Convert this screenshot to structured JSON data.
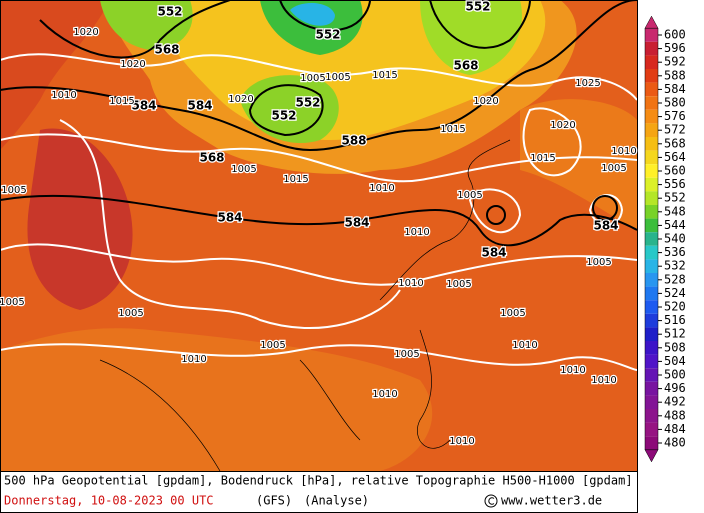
{
  "map": {
    "labels": [
      552,
      552,
      552,
      568,
      568,
      584,
      584,
      552,
      552,
      588,
      568,
      584,
      584,
      584,
      584,
      1020,
      1020,
      1010,
      1015,
      1020,
      1005,
      1005,
      1015,
      1020,
      1025,
      1020,
      1015,
      1010,
      1015,
      1005,
      1005,
      1010,
      1005,
      1010,
      1005,
      1005,
      1010,
      1005,
      1005,
      1005,
      1005,
      1010,
      1010,
      1010,
      1010,
      1010,
      1005,
      1010,
      1015,
      1005
    ],
    "gp_color": "#000000",
    "colorbar": {
      "levels": [
        600,
        596,
        592,
        588,
        584,
        580,
        576,
        572,
        568,
        564,
        560,
        556,
        552,
        548,
        544,
        540,
        536,
        532,
        528,
        524,
        520,
        516,
        512,
        508,
        504,
        500,
        496,
        492,
        488,
        484,
        480
      ],
      "colors": [
        "#c8286e",
        "#c81e32",
        "#d7281e",
        "#e13c14",
        "#eb5a14",
        "#f07314",
        "#f58c14",
        "#f5a514",
        "#f5be14",
        "#f5d71e",
        "#fff028",
        "#dcf028",
        "#b4e628",
        "#78d228",
        "#3cbe3c",
        "#28b48c",
        "#28c8c8",
        "#28b4e6",
        "#2896f0",
        "#1e78f0",
        "#1e5af0",
        "#1e3cdc",
        "#1e1ec8",
        "#3c14c8",
        "#5014c8",
        "#6414b4",
        "#7814a0",
        "#821496",
        "#8c148c",
        "#961482",
        "#8c0a78"
      ]
    }
  },
  "footer": {
    "description": "500 hPa Geopotential [gpdam], Bodendruck [hPa], relative Topographie H500-H1000 [gpdam]",
    "date": "Donnerstag, 10-08-2023  00 UTC",
    "model": "(GFS)",
    "run": "(Analyse)",
    "site": "www.wetter3.de"
  }
}
